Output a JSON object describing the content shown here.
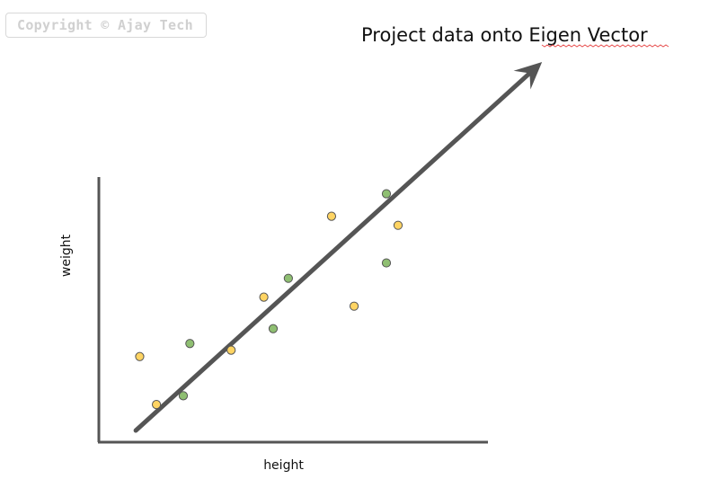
{
  "watermark": {
    "text": "Copyright © Ajay Tech"
  },
  "chart_data": {
    "type": "scatter",
    "title": "Project data onto Eigen Vector",
    "xlabel": "height",
    "ylabel": "weight",
    "xlim": [
      0,
      100
    ],
    "ylim": [
      0,
      100
    ],
    "grid": false,
    "colors": {
      "yellow": "#ffd463",
      "green": "#8fbf72",
      "stroke": "#555555",
      "axis": "#555555",
      "arrow": "#555555",
      "squiggle": "#e85050"
    },
    "series": [
      {
        "color": "#ffd463",
        "points": [
          {
            "x": 10.5,
            "y": 32.3
          },
          {
            "x": 14.8,
            "y": 14.2
          },
          {
            "x": 34.0,
            "y": 34.7
          },
          {
            "x": 42.4,
            "y": 54.7
          },
          {
            "x": 59.8,
            "y": 85.2
          },
          {
            "x": 65.6,
            "y": 51.3
          },
          {
            "x": 76.9,
            "y": 81.8
          }
        ]
      },
      {
        "color": "#8fbf72",
        "points": [
          {
            "x": 23.4,
            "y": 37.2
          },
          {
            "x": 21.7,
            "y": 17.5
          },
          {
            "x": 44.8,
            "y": 42.8
          },
          {
            "x": 48.7,
            "y": 61.8
          },
          {
            "x": 73.9,
            "y": 67.6
          },
          {
            "x": 73.9,
            "y": 93.7
          }
        ]
      }
    ],
    "eigen_vector": {
      "from": {
        "x": 9.5,
        "y": 4.4
      },
      "to": {
        "x": 113.9,
        "y": 143.4
      }
    }
  }
}
